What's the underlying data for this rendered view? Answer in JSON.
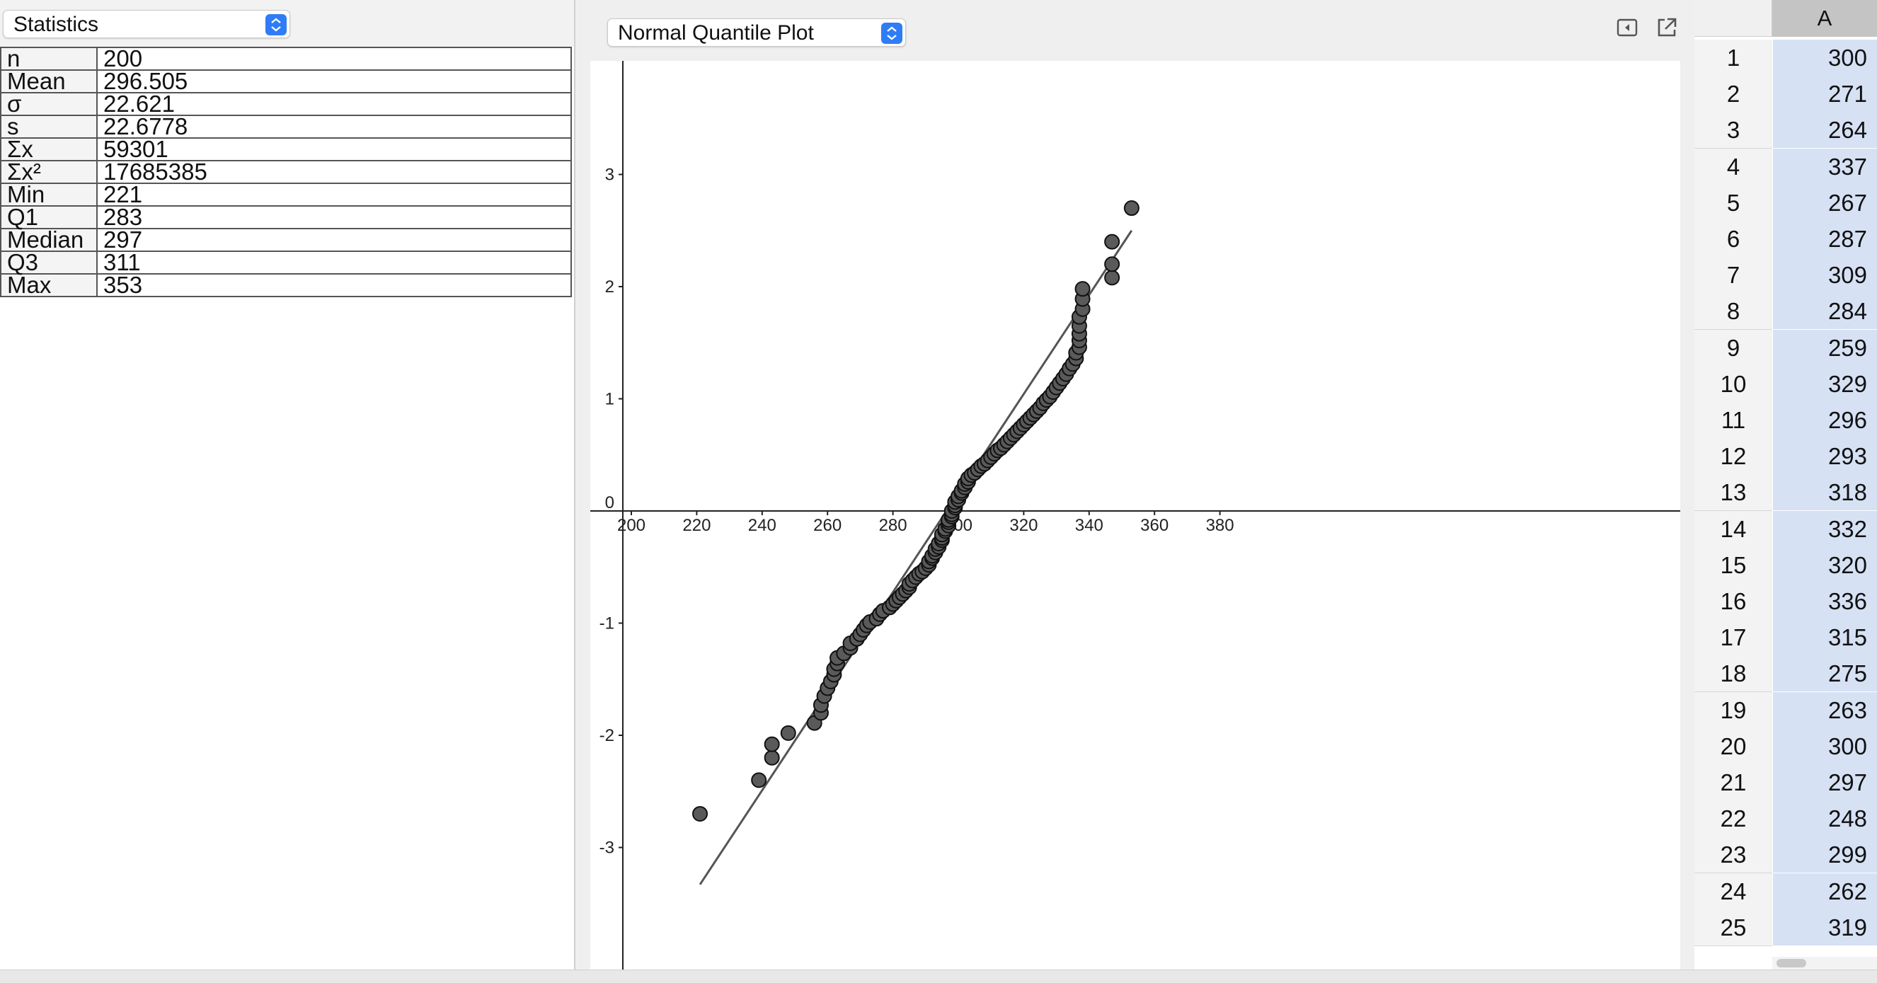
{
  "stats_panel": {
    "dropdown_label": "Statistics",
    "rows": [
      {
        "label": "n",
        "value": "200"
      },
      {
        "label": "Mean",
        "value": "296.505"
      },
      {
        "label": "σ",
        "value": "22.621"
      },
      {
        "label": "s",
        "value": "22.6778"
      },
      {
        "label": "Σx",
        "value": "59301"
      },
      {
        "label": "Σx²",
        "value": "17685385"
      },
      {
        "label": "Min",
        "value": "221"
      },
      {
        "label": "Q1",
        "value": "283"
      },
      {
        "label": "Median",
        "value": "297"
      },
      {
        "label": "Q3",
        "value": "311"
      },
      {
        "label": "Max",
        "value": "353"
      }
    ]
  },
  "plot_panel": {
    "dropdown_label": "Normal Quantile Plot",
    "toolbar": {
      "collapse_icon": "collapse-left-icon",
      "export_icon": "pop-out-icon"
    }
  },
  "chart_data": {
    "type": "scatter",
    "title": "",
    "xlabel": "",
    "ylabel": "",
    "xlim": [
      190,
      385
    ],
    "ylim": [
      -4.0,
      4.0
    ],
    "x_ticks": [
      200,
      220,
      240,
      260,
      280,
      300,
      320,
      340,
      360,
      380
    ],
    "y_ticks": [
      -3,
      -2,
      -1,
      0,
      1,
      2,
      3
    ],
    "grid": false,
    "marker_color": "#5a5a5a",
    "line_color": "#555555",
    "fit_line": {
      "x": [
        221,
        353
      ],
      "y": [
        -3.33,
        2.5
      ]
    },
    "points": [
      [
        221,
        -2.7
      ],
      [
        239,
        -2.4
      ],
      [
        243,
        -2.2
      ],
      [
        243,
        -2.08
      ],
      [
        248,
        -1.98
      ],
      [
        256,
        -1.89
      ],
      [
        258,
        -1.8
      ],
      [
        258,
        -1.73
      ],
      [
        259,
        -1.65
      ],
      [
        260,
        -1.58
      ],
      [
        261,
        -1.52
      ],
      [
        262,
        -1.46
      ],
      [
        262,
        -1.41
      ],
      [
        263,
        -1.36
      ],
      [
        263,
        -1.31
      ],
      [
        265,
        -1.27
      ],
      [
        267,
        -1.22
      ],
      [
        267,
        -1.18
      ],
      [
        269,
        -1.14
      ],
      [
        270,
        -1.1
      ],
      [
        271,
        -1.06
      ],
      [
        272,
        -1.02
      ],
      [
        273,
        -0.99
      ],
      [
        275,
        -0.96
      ],
      [
        276,
        -0.92
      ],
      [
        277,
        -0.89
      ],
      [
        279,
        -0.86
      ],
      [
        280,
        -0.83
      ],
      [
        281,
        -0.8
      ],
      [
        282,
        -0.77
      ],
      [
        283,
        -0.74
      ],
      [
        284,
        -0.71
      ],
      [
        285,
        -0.68
      ],
      [
        285,
        -0.65
      ],
      [
        286,
        -0.62
      ],
      [
        287,
        -0.59
      ],
      [
        288,
        -0.56
      ],
      [
        289,
        -0.54
      ],
      [
        290,
        -0.51
      ],
      [
        291,
        -0.48
      ],
      [
        291,
        -0.45
      ],
      [
        292,
        -0.42
      ],
      [
        292,
        -0.4
      ],
      [
        293,
        -0.37
      ],
      [
        293,
        -0.34
      ],
      [
        294,
        -0.32
      ],
      [
        294,
        -0.29
      ],
      [
        295,
        -0.26
      ],
      [
        295,
        -0.24
      ],
      [
        295,
        -0.21
      ],
      [
        296,
        -0.18
      ],
      [
        296,
        -0.16
      ],
      [
        297,
        -0.13
      ],
      [
        297,
        -0.1
      ],
      [
        297,
        -0.08
      ],
      [
        298,
        -0.05
      ],
      [
        298,
        -0.03
      ],
      [
        298,
        0.0
      ],
      [
        299,
        0.03
      ],
      [
        299,
        0.05
      ],
      [
        299,
        0.08
      ],
      [
        300,
        0.1
      ],
      [
        300,
        0.13
      ],
      [
        301,
        0.16
      ],
      [
        301,
        0.18
      ],
      [
        302,
        0.21
      ],
      [
        302,
        0.24
      ],
      [
        303,
        0.26
      ],
      [
        303,
        0.29
      ],
      [
        304,
        0.32
      ],
      [
        305,
        0.34
      ],
      [
        306,
        0.37
      ],
      [
        307,
        0.4
      ],
      [
        308,
        0.42
      ],
      [
        309,
        0.45
      ],
      [
        310,
        0.48
      ],
      [
        311,
        0.51
      ],
      [
        312,
        0.54
      ],
      [
        313,
        0.56
      ],
      [
        314,
        0.59
      ],
      [
        315,
        0.62
      ],
      [
        316,
        0.65
      ],
      [
        317,
        0.68
      ],
      [
        318,
        0.71
      ],
      [
        319,
        0.74
      ],
      [
        320,
        0.77
      ],
      [
        321,
        0.8
      ],
      [
        322,
        0.83
      ],
      [
        323,
        0.86
      ],
      [
        324,
        0.89
      ],
      [
        325,
        0.92
      ],
      [
        326,
        0.96
      ],
      [
        327,
        0.99
      ],
      [
        328,
        1.02
      ],
      [
        329,
        1.06
      ],
      [
        330,
        1.1
      ],
      [
        331,
        1.14
      ],
      [
        332,
        1.18
      ],
      [
        333,
        1.22
      ],
      [
        334,
        1.27
      ],
      [
        335,
        1.31
      ],
      [
        336,
        1.36
      ],
      [
        336,
        1.41
      ],
      [
        337,
        1.46
      ],
      [
        337,
        1.52
      ],
      [
        337,
        1.58
      ],
      [
        337,
        1.65
      ],
      [
        337,
        1.73
      ],
      [
        338,
        1.8
      ],
      [
        338,
        1.89
      ],
      [
        338,
        1.98
      ],
      [
        347,
        2.08
      ],
      [
        347,
        2.2
      ],
      [
        347,
        2.4
      ],
      [
        353,
        2.7
      ]
    ]
  },
  "spreadsheet": {
    "column_header": "A",
    "rows": [
      {
        "n": "1",
        "v": "300"
      },
      {
        "n": "2",
        "v": "271"
      },
      {
        "n": "3",
        "v": "264"
      },
      {
        "n": "4",
        "v": "337"
      },
      {
        "n": "5",
        "v": "267"
      },
      {
        "n": "6",
        "v": "287"
      },
      {
        "n": "7",
        "v": "309"
      },
      {
        "n": "8",
        "v": "284"
      },
      {
        "n": "9",
        "v": "259"
      },
      {
        "n": "10",
        "v": "329"
      },
      {
        "n": "11",
        "v": "296"
      },
      {
        "n": "12",
        "v": "293"
      },
      {
        "n": "13",
        "v": "318"
      },
      {
        "n": "14",
        "v": "332"
      },
      {
        "n": "15",
        "v": "320"
      },
      {
        "n": "16",
        "v": "336"
      },
      {
        "n": "17",
        "v": "315"
      },
      {
        "n": "18",
        "v": "275"
      },
      {
        "n": "19",
        "v": "263"
      },
      {
        "n": "20",
        "v": "300"
      },
      {
        "n": "21",
        "v": "297"
      },
      {
        "n": "22",
        "v": "248"
      },
      {
        "n": "23",
        "v": "299"
      },
      {
        "n": "24",
        "v": "262"
      },
      {
        "n": "25",
        "v": "319"
      }
    ]
  }
}
